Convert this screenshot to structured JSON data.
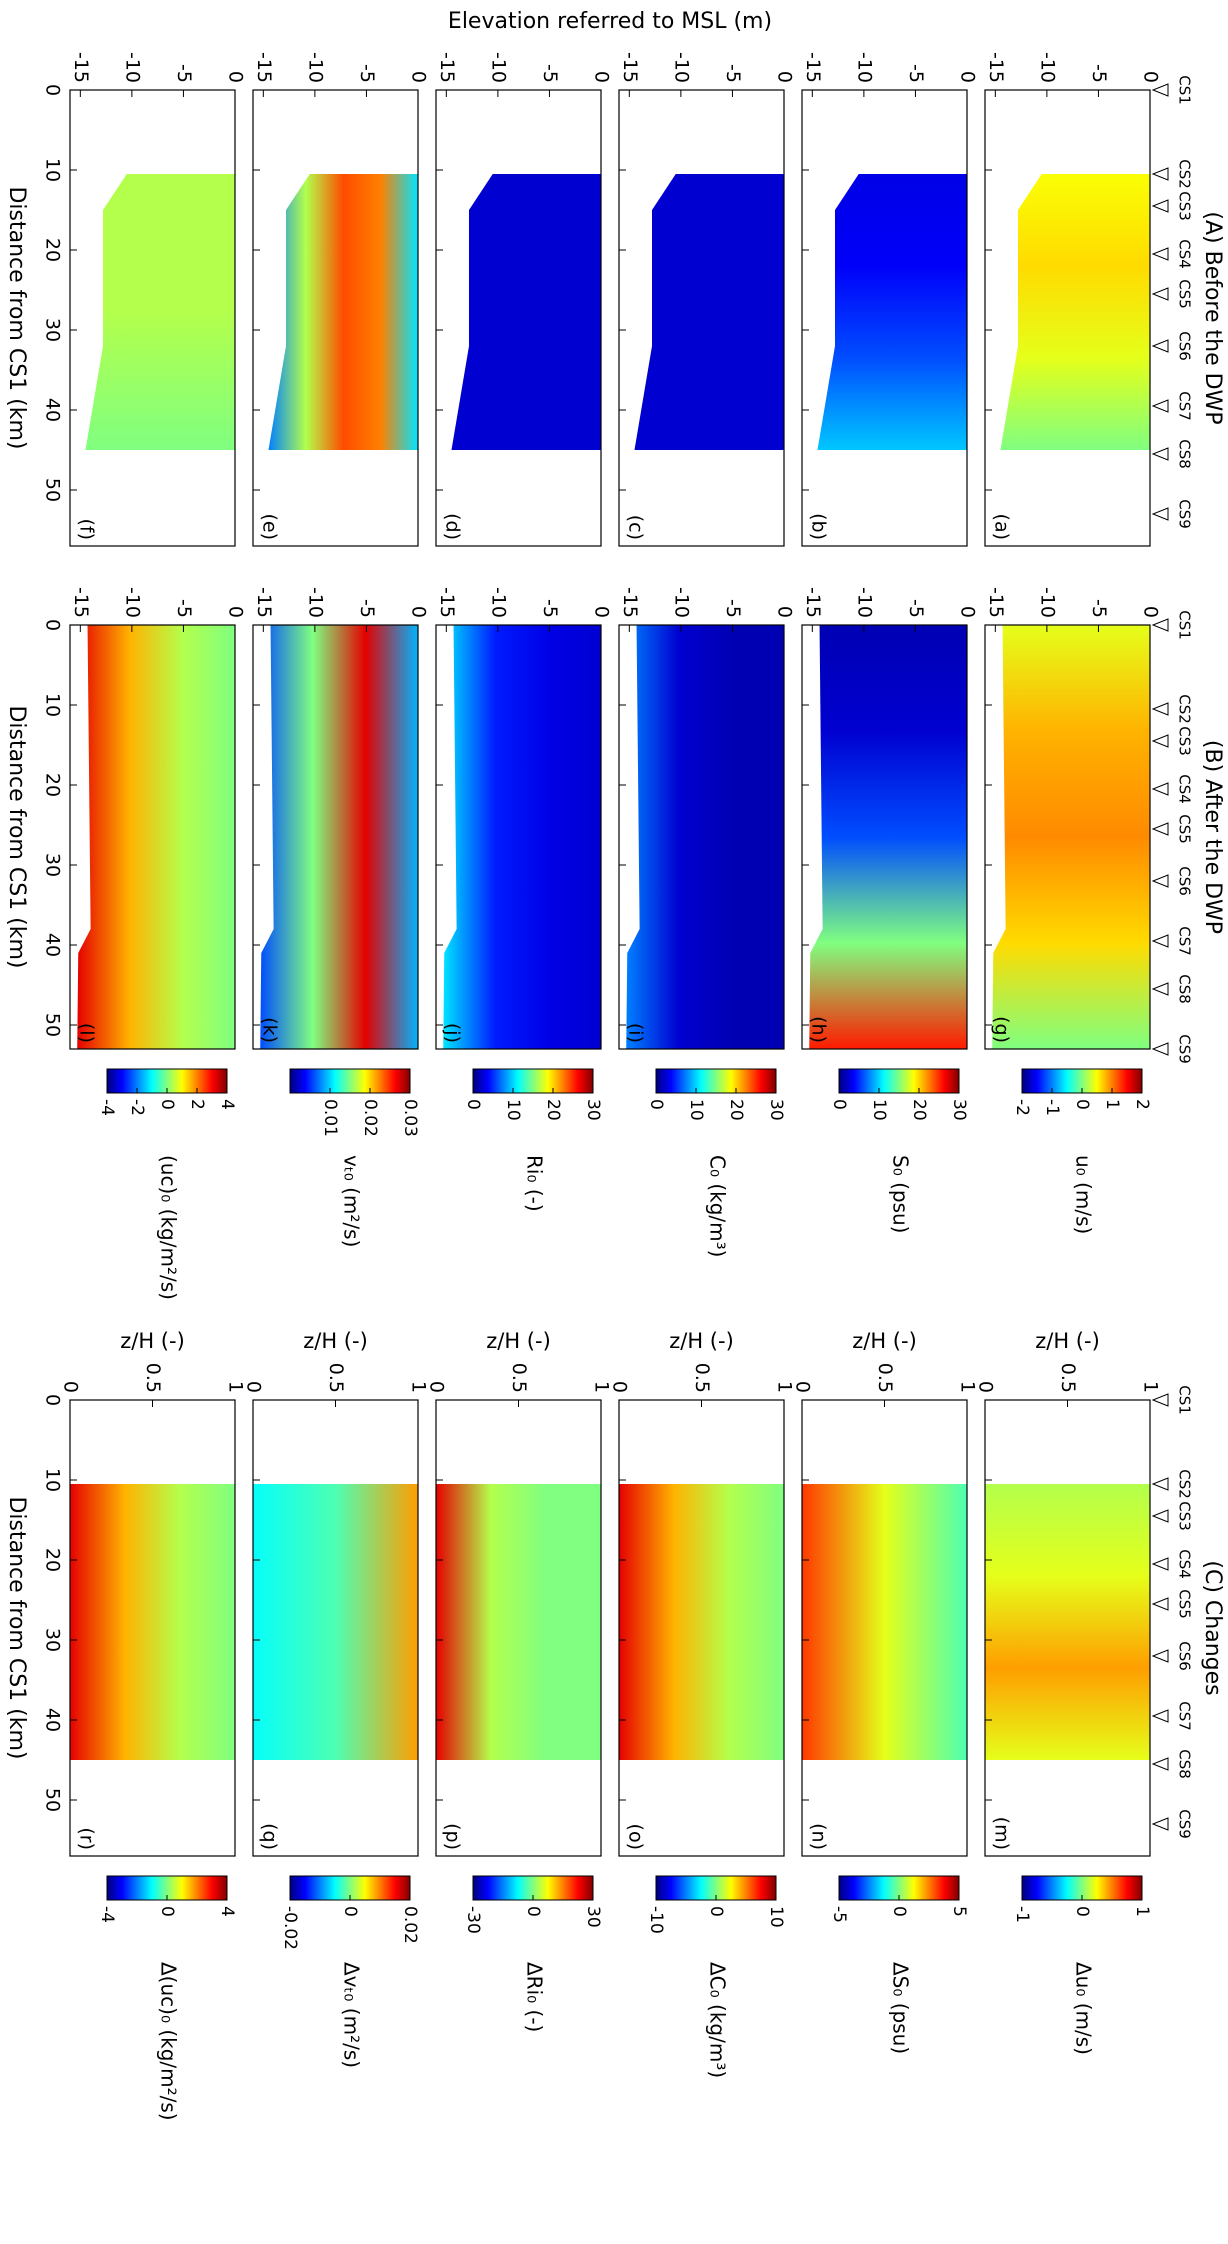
{
  "figure": {
    "y_label": "Elevation referred to MSL (m)",
    "columns": [
      {
        "title": "(A) Before the DWP",
        "x_label": "Distance from CS1 (km)",
        "sections": {
          "names": [
            "CS1",
            "CS2",
            "CS3",
            "CS4",
            "CS5",
            "CS6",
            "CS7",
            "CS8",
            "CS9"
          ],
          "x": [
            0,
            10.5,
            14.5,
            20.5,
            25.5,
            32,
            39.5,
            45.5,
            53
          ]
        }
      },
      {
        "title": "(B) After the DWP",
        "x_label": "Distance from CS1 (km)",
        "sections": {
          "names": [
            "CS1",
            "CS2",
            "CS3",
            "CS4",
            "CS5",
            "CS6",
            "CS7",
            "CS8",
            "CS9"
          ],
          "x": [
            0,
            10.5,
            14.5,
            20.5,
            25.5,
            32,
            39.5,
            45.5,
            53
          ]
        }
      },
      {
        "title": "(C) Changes",
        "x_label": "Distance from CS1 (km)",
        "sections": {
          "names": [
            "CS1",
            "CS2",
            "CS3",
            "CS4",
            "CS5",
            "CS6",
            "CS7",
            "CS8",
            "CS9"
          ],
          "x": [
            0,
            10.5,
            14.5,
            20.5,
            25.5,
            32,
            39.5,
            45.5,
            53
          ]
        }
      }
    ]
  },
  "chart_data": [
    {
      "type": "contour",
      "label": "(a)",
      "xlim": [
        0,
        57
      ],
      "xticks": [
        0,
        10,
        20,
        30,
        40,
        50
      ],
      "ylim": [
        -16,
        0
      ],
      "yticks": [
        -15,
        -10,
        -5,
        0
      ]
    },
    {
      "type": "contour",
      "label": "(b)",
      "xlim": [
        0,
        57
      ],
      "xticks": [
        0,
        10,
        20,
        30,
        40,
        50
      ],
      "ylim": [
        -16,
        0
      ],
      "yticks": [
        -15,
        -10,
        -5,
        0
      ]
    },
    {
      "type": "contour",
      "label": "(c)",
      "xlim": [
        0,
        57
      ],
      "xticks": [
        0,
        10,
        20,
        30,
        40,
        50
      ],
      "ylim": [
        -16,
        0
      ],
      "yticks": [
        -15,
        -10,
        -5,
        0
      ]
    },
    {
      "type": "contour",
      "label": "(d)",
      "xlim": [
        0,
        57
      ],
      "xticks": [
        0,
        10,
        20,
        30,
        40,
        50
      ],
      "ylim": [
        -16,
        0
      ],
      "yticks": [
        -15,
        -10,
        -5,
        0
      ]
    },
    {
      "type": "contour",
      "label": "(e)",
      "xlim": [
        0,
        57
      ],
      "xticks": [
        0,
        10,
        20,
        30,
        40,
        50
      ],
      "ylim": [
        -16,
        0
      ],
      "yticks": [
        -15,
        -10,
        -5,
        0
      ]
    },
    {
      "type": "contour",
      "label": "(f)",
      "xlim": [
        0,
        57
      ],
      "xticks": [
        0,
        10,
        20,
        30,
        40,
        50
      ],
      "ylim": [
        -16,
        0
      ],
      "yticks": [
        -15,
        -10,
        -5,
        0
      ]
    },
    {
      "type": "contour",
      "label": "(g)",
      "xlim": [
        0,
        53
      ],
      "xticks": [
        0,
        10,
        20,
        30,
        40,
        50
      ],
      "ylim": [
        -16,
        0
      ],
      "yticks": [
        -15,
        -10,
        -5,
        0
      ],
      "colorbar": {
        "label": "u₀ (m/s)",
        "lim": [
          -2,
          2
        ],
        "ticks": [
          -2,
          -1,
          0,
          1,
          2
        ]
      }
    },
    {
      "type": "contour",
      "label": "(h)",
      "xlim": [
        0,
        53
      ],
      "xticks": [
        0,
        10,
        20,
        30,
        40,
        50
      ],
      "ylim": [
        -16,
        0
      ],
      "yticks": [
        -15,
        -10,
        -5,
        0
      ],
      "colorbar": {
        "label": "S₀ (psu)",
        "lim": [
          0,
          30
        ],
        "ticks": [
          0,
          10,
          20,
          30
        ]
      }
    },
    {
      "type": "contour",
      "label": "(i)",
      "xlim": [
        0,
        53
      ],
      "xticks": [
        0,
        10,
        20,
        30,
        40,
        50
      ],
      "ylim": [
        -16,
        0
      ],
      "yticks": [
        -15,
        -10,
        -5,
        0
      ],
      "colorbar": {
        "label": "C₀ (kg/m³)",
        "lim": [
          0,
          30
        ],
        "ticks": [
          0,
          10,
          20,
          30
        ]
      }
    },
    {
      "type": "contour",
      "label": "(j)",
      "xlim": [
        0,
        53
      ],
      "xticks": [
        0,
        10,
        20,
        30,
        40,
        50
      ],
      "ylim": [
        -16,
        0
      ],
      "yticks": [
        -15,
        -10,
        -5,
        0
      ],
      "colorbar": {
        "label": "Ri₀ (-)",
        "lim": [
          0,
          30
        ],
        "ticks": [
          0,
          10,
          20,
          30
        ]
      }
    },
    {
      "type": "contour",
      "label": "(k)",
      "xlim": [
        0,
        53
      ],
      "xticks": [
        0,
        10,
        20,
        30,
        40,
        50
      ],
      "ylim": [
        -16,
        0
      ],
      "yticks": [
        -15,
        -10,
        -5,
        0
      ],
      "colorbar": {
        "label": "vₜ₀ (m²/s)",
        "lim": [
          0,
          0.03
        ],
        "ticks": [
          0.01,
          0.02,
          0.03
        ]
      }
    },
    {
      "type": "contour",
      "label": "(l)",
      "xlim": [
        0,
        53
      ],
      "xticks": [
        0,
        10,
        20,
        30,
        40,
        50
      ],
      "ylim": [
        -16,
        0
      ],
      "yticks": [
        -15,
        -10,
        -5,
        0
      ],
      "colorbar": {
        "label": "(uc)₀ (kg/m²/s)",
        "lim": [
          -4,
          4
        ],
        "ticks": [
          -4,
          -2,
          0,
          2,
          4
        ]
      }
    },
    {
      "type": "contour",
      "label": "(m)",
      "xlim": [
        0,
        57
      ],
      "xticks": [
        0,
        10,
        20,
        30,
        40,
        50
      ],
      "ylim": [
        0,
        1
      ],
      "yticks": [
        0,
        0.5,
        1
      ],
      "y_label": "z/H (-)",
      "colorbar": {
        "label": "Δu₀ (m/s)",
        "lim": [
          -1,
          1
        ],
        "ticks": [
          -1,
          0,
          1
        ]
      }
    },
    {
      "type": "contour",
      "label": "(n)",
      "xlim": [
        0,
        57
      ],
      "xticks": [
        0,
        10,
        20,
        30,
        40,
        50
      ],
      "ylim": [
        0,
        1
      ],
      "yticks": [
        0,
        0.5,
        1
      ],
      "y_label": "z/H (-)",
      "colorbar": {
        "label": "ΔS₀ (psu)",
        "lim": [
          -5,
          5
        ],
        "ticks": [
          -5,
          0,
          5
        ]
      }
    },
    {
      "type": "contour",
      "label": "(o)",
      "xlim": [
        0,
        57
      ],
      "xticks": [
        0,
        10,
        20,
        30,
        40,
        50
      ],
      "ylim": [
        0,
        1
      ],
      "yticks": [
        0,
        0.5,
        1
      ],
      "y_label": "z/H (-)",
      "colorbar": {
        "label": "ΔC₀ (kg/m³)",
        "lim": [
          -10,
          10
        ],
        "ticks": [
          -10,
          0,
          10
        ]
      }
    },
    {
      "type": "contour",
      "label": "(p)",
      "xlim": [
        0,
        57
      ],
      "xticks": [
        0,
        10,
        20,
        30,
        40,
        50
      ],
      "ylim": [
        0,
        1
      ],
      "yticks": [
        0,
        0.5,
        1
      ],
      "y_label": "z/H (-)",
      "colorbar": {
        "label": "ΔRi₀ (-)",
        "lim": [
          -30,
          30
        ],
        "ticks": [
          -30,
          0,
          30
        ]
      }
    },
    {
      "type": "contour",
      "label": "(q)",
      "xlim": [
        0,
        57
      ],
      "xticks": [
        0,
        10,
        20,
        30,
        40,
        50
      ],
      "ylim": [
        0,
        1
      ],
      "yticks": [
        0,
        0.5,
        1
      ],
      "y_label": "z/H (-)",
      "colorbar": {
        "label": "Δvₜ₀ (m²/s)",
        "lim": [
          -0.02,
          0.02
        ],
        "ticks": [
          -0.02,
          0,
          0.02
        ]
      }
    },
    {
      "type": "contour",
      "label": "(r)",
      "xlim": [
        0,
        57
      ],
      "xticks": [
        0,
        10,
        20,
        30,
        40,
        50
      ],
      "ylim": [
        0,
        1
      ],
      "yticks": [
        0,
        0.5,
        1
      ],
      "y_label": "z/H (-)",
      "colorbar": {
        "label": "Δ(uc)₀ (kg/m²/s)",
        "lim": [
          -4,
          4
        ],
        "ticks": [
          -4,
          0,
          4
        ]
      }
    }
  ]
}
